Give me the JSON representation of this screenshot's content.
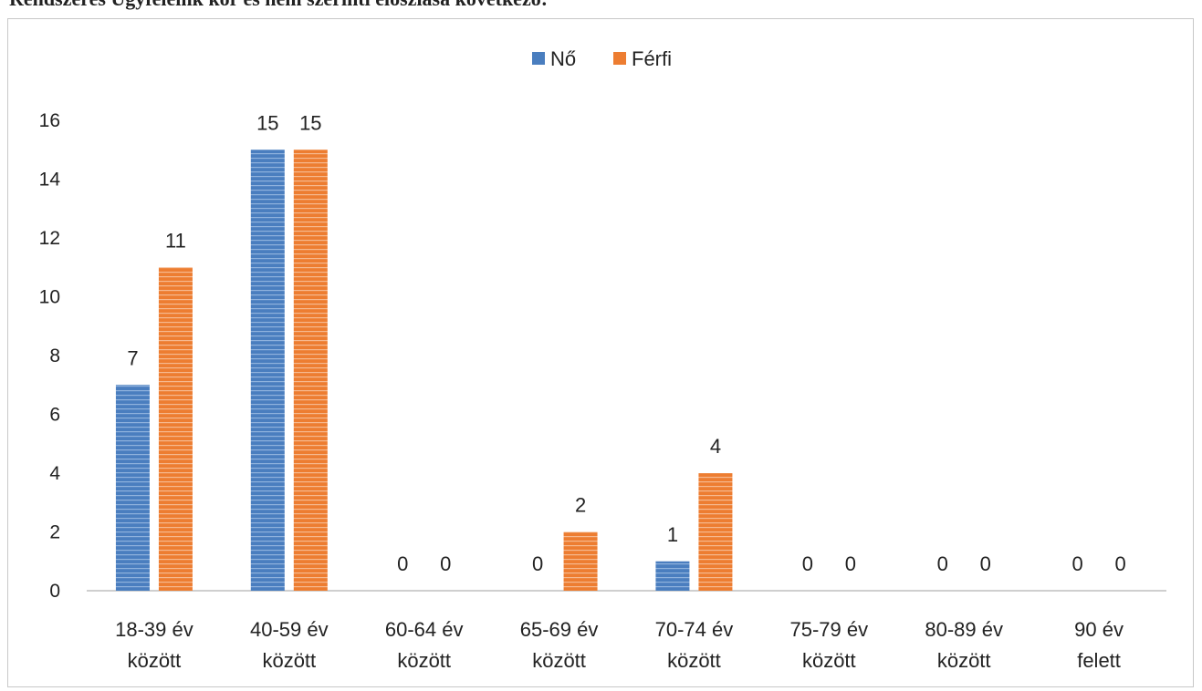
{
  "caption": "Rendszeres Ügyfeleink kor és nem szerinti eloszlása következő:",
  "chart_data": {
    "type": "bar",
    "categories": [
      [
        "18-39 év",
        "között"
      ],
      [
        "40-59 év",
        "között"
      ],
      [
        "60-64 év",
        "között"
      ],
      [
        "65-69 év",
        "között"
      ],
      [
        "70-74 év",
        "között"
      ],
      [
        "75-79 év",
        "között"
      ],
      [
        "80-89 év",
        "között"
      ],
      [
        "90 év",
        "felett"
      ]
    ],
    "series": [
      {
        "name": "Nő",
        "values": [
          7,
          15,
          0,
          0,
          1,
          0,
          0,
          0
        ],
        "color": "#4a7ebf"
      },
      {
        "name": "Férfi",
        "values": [
          11,
          15,
          0,
          2,
          4,
          0,
          0,
          0
        ],
        "color": "#ed7d31"
      }
    ],
    "ylim": [
      0,
      16
    ],
    "yticks": [
      0,
      2,
      4,
      6,
      8,
      10,
      12,
      14,
      16
    ],
    "grid": false,
    "legend": "top-center",
    "data_labels": true
  }
}
